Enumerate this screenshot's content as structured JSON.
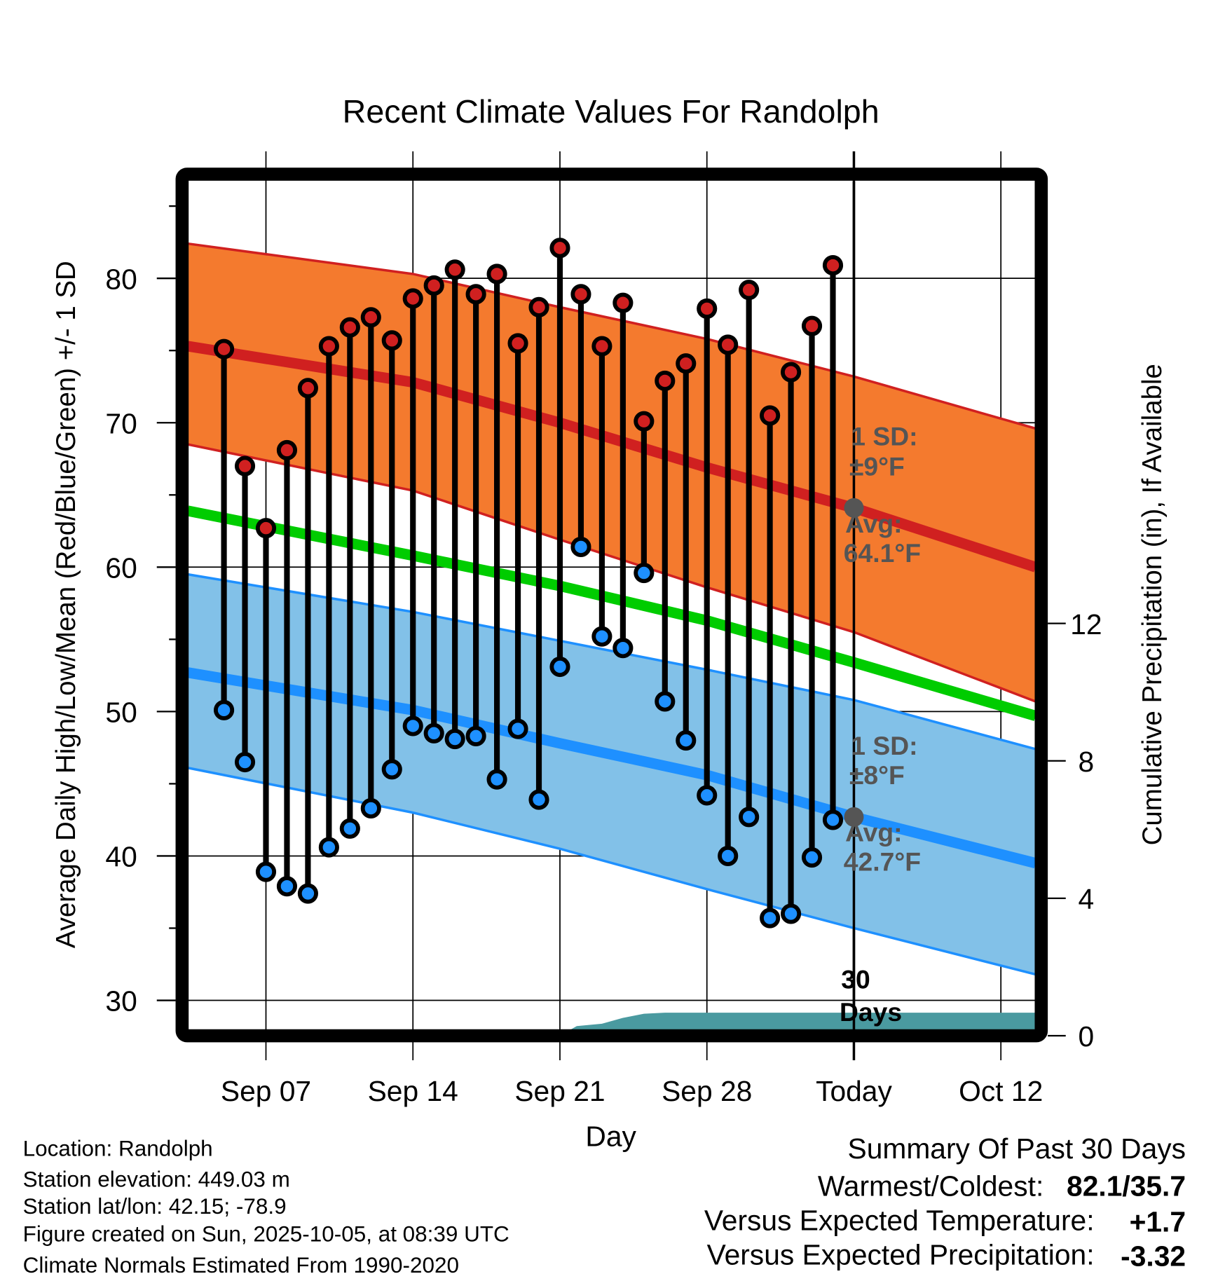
{
  "chart_data": {
    "type": "line",
    "title": "Recent Climate Values For Randolph",
    "xlabel": "Day",
    "ylabel": "Average Daily High/Low/Mean (Red/Blue/Green) +/- 1 SD",
    "y2label": "Cumulative Precipitation (in), If Available",
    "x_unit": "days since Aug 31 (Sep 1 = 1)",
    "xlim": [
      3.28,
      43.65
    ],
    "ylim": [
      27.55,
      86.7
    ],
    "y2lim": [
      0,
      24.86
    ],
    "yticks": [
      30,
      40,
      50,
      60,
      70,
      80
    ],
    "y2ticks": [
      0,
      4,
      8,
      12
    ],
    "xticks": [
      {
        "day": 7,
        "label": "Sep 07"
      },
      {
        "day": 14,
        "label": "Sep 14"
      },
      {
        "day": 21,
        "label": "Sep 21"
      },
      {
        "day": 28,
        "label": "Sep 28"
      },
      {
        "day": 35,
        "label": "Today"
      },
      {
        "day": 42,
        "label": "Oct 12"
      }
    ],
    "grid": true,
    "days": [
      5,
      6,
      7,
      8,
      9,
      10,
      11,
      12,
      13,
      14,
      15,
      16,
      17,
      18,
      19,
      20,
      21,
      22,
      23,
      24,
      25,
      26,
      27,
      28,
      29,
      30,
      31,
      32,
      33,
      34
    ],
    "highs": [
      75.1,
      67.0,
      62.7,
      68.1,
      72.4,
      75.3,
      76.6,
      77.3,
      75.7,
      78.6,
      79.5,
      80.6,
      78.9,
      80.3,
      75.5,
      78.0,
      82.1,
      78.9,
      75.3,
      78.3,
      70.1,
      72.9,
      74.1,
      77.9,
      75.4,
      79.2,
      70.5,
      73.5,
      76.7,
      80.9
    ],
    "lows": [
      50.1,
      46.5,
      38.9,
      37.9,
      37.4,
      40.6,
      41.9,
      43.3,
      46.0,
      49.0,
      48.5,
      48.1,
      48.3,
      45.3,
      48.8,
      43.9,
      53.1,
      61.4,
      55.2,
      54.4,
      59.6,
      50.7,
      48.0,
      44.2,
      40.0,
      42.7,
      35.7,
      36.0,
      39.9,
      42.5
    ],
    "normals": {
      "days": [
        3.28,
        14,
        21,
        28,
        35,
        43.65
      ],
      "high_upper": [
        82.4,
        80.3,
        78.0,
        75.8,
        73.2,
        69.6
      ],
      "high_avg": [
        75.3,
        72.8,
        70.0,
        66.9,
        64.1,
        60.0
      ],
      "high_lower": [
        68.5,
        65.3,
        61.9,
        58.6,
        55.5,
        50.7
      ],
      "mean": [
        63.9,
        60.8,
        58.7,
        56.3,
        53.4,
        49.7
      ],
      "low_upper": [
        59.5,
        56.9,
        54.9,
        52.9,
        50.8,
        47.4
      ],
      "low_avg": [
        52.7,
        50.1,
        47.8,
        45.6,
        42.7,
        39.5
      ],
      "low_lower": [
        46.1,
        43.0,
        40.5,
        37.7,
        35.0,
        31.8
      ]
    },
    "precip_cumulative": {
      "days": [
        3.28,
        21,
        21.8,
        23,
        24,
        25,
        26,
        43.65
      ],
      "values": [
        0,
        0,
        0.28,
        0.35,
        0.52,
        0.64,
        0.67,
        0.67
      ]
    },
    "today_day": 35,
    "annotations": {
      "high_sd_label": "1 SD:",
      "high_sd_value": "±9°F",
      "high_avg_label": "Avg:",
      "high_avg_value": "64.1°F",
      "low_sd_label": "1 SD:",
      "low_sd_value": "±8°F",
      "low_avg_label": "Avg:",
      "low_avg_value": "42.7°F",
      "window_label_1": "30",
      "window_label_2": "Days"
    },
    "colors": {
      "high": "#d02020",
      "high_band": "#f47a2e",
      "low": "#1e90ff",
      "low_band": "#82c1e8",
      "mean": "#00cc00",
      "precip": "#4a9aa0",
      "annotation": "#555555"
    }
  },
  "info": {
    "location": "Location: Randolph",
    "elevation": "Station elevation: 449.03 m",
    "latlon": "Station lat/lon: 42.15; -78.9",
    "created": "Figure created on Sun, 2025-10-05, at 08:39 UTC",
    "normals": "Climate Normals Estimated From 1990-2020"
  },
  "summary": {
    "title": "Summary Of Past 30 Days",
    "warm_cold_label": "Warmest/Coldest:",
    "warm_cold_value": "82.1/35.7",
    "temp_label": "Versus Expected Temperature:",
    "temp_value": "+1.7",
    "precip_label": "Versus Expected Precipitation:",
    "precip_value": "-3.32",
    "temp_color": "#d02020",
    "precip_color": "#a0522d"
  }
}
